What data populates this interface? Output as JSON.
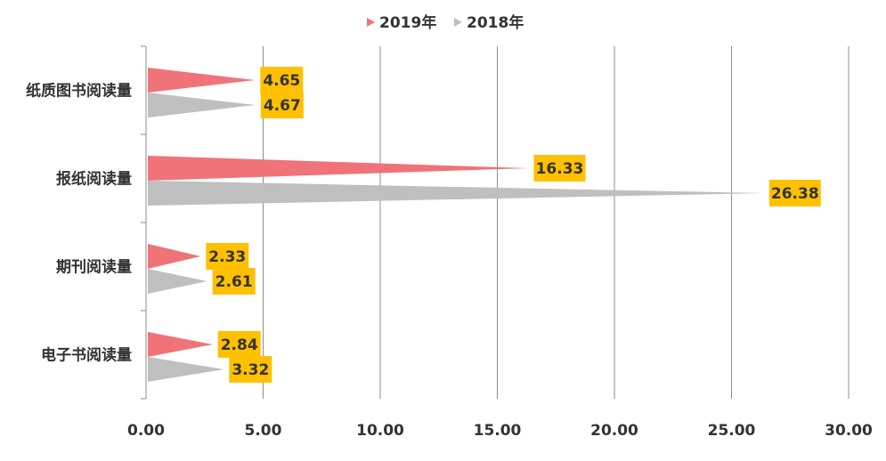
{
  "chart_data": {
    "type": "bar",
    "orientation": "horizontal",
    "categories": [
      "纸质图书阅读量",
      "报纸阅读量",
      "期刊阅读量",
      "电子书阅读量"
    ],
    "series": [
      {
        "name": "2019年",
        "color": "#ef7379",
        "values": [
          4.65,
          16.33,
          2.33,
          2.84
        ]
      },
      {
        "name": "2018年",
        "color": "#bfbfbf",
        "values": [
          4.67,
          26.38,
          2.61,
          3.32
        ]
      }
    ],
    "xlim": [
      0,
      30
    ],
    "xticks": [
      {
        "value": 0,
        "label": "0.00"
      },
      {
        "value": 5,
        "label": "5.00"
      },
      {
        "value": 10,
        "label": "10.00"
      },
      {
        "value": 15,
        "label": "15.00"
      },
      {
        "value": 20,
        "label": "20.00"
      },
      {
        "value": 25,
        "label": "25.00"
      },
      {
        "value": 30,
        "label": "30.00"
      }
    ],
    "grid": true,
    "legend": "top",
    "label_color": "#ffc000"
  }
}
